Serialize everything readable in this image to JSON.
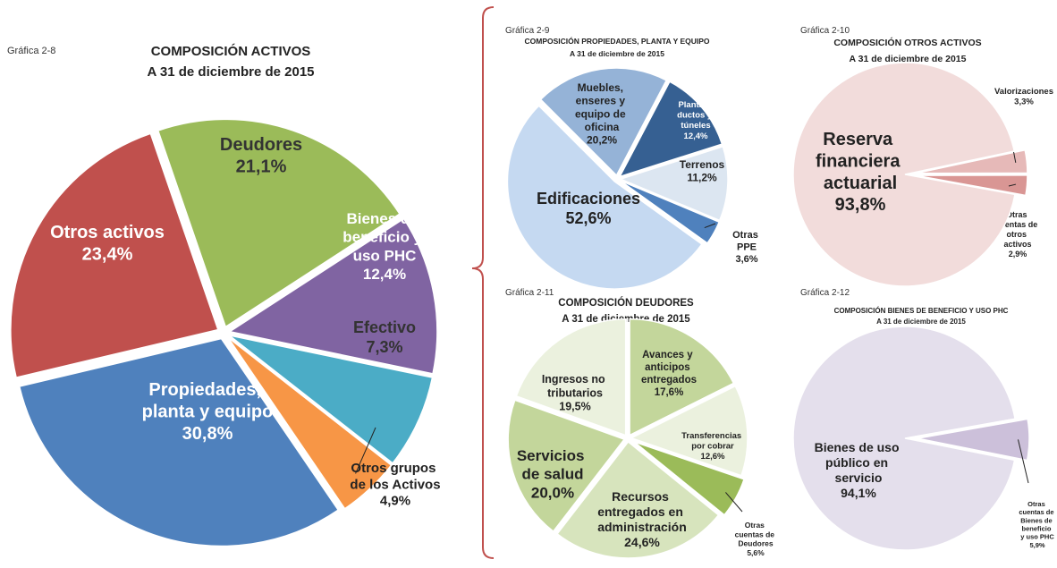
{
  "chart_data": [
    {
      "type": "pie",
      "chart_label": "Gráfica 2-8",
      "title": "COMPOSICIÓN ACTIVOS",
      "subtitle": "A 31 de diciembre de 2015",
      "categories": [
        "Deudores",
        "Bienes de beneficio y uso PHC",
        "Efectivo",
        "Otros grupos de los Activos",
        "Propiedades, planta y equipo",
        "Otros activos"
      ],
      "values": [
        21.1,
        12.4,
        7.3,
        4.9,
        30.8,
        23.4
      ],
      "value_labels": [
        "21,1%",
        "12,4%",
        "7,3%",
        "4,9%",
        "30,8%",
        "23,4%"
      ],
      "colors": [
        "#9bbb59",
        "#8064a2",
        "#4bacc6",
        "#f79646",
        "#4f81bd",
        "#c0504d"
      ]
    },
    {
      "type": "pie",
      "chart_label": "Gráfica 2-9",
      "title": "COMPOSICIÓN PROPIEDADES, PLANTA Y EQUIPO",
      "subtitle": "A 31 de diciembre de 2015",
      "categories": [
        "Muebles, enseres y equipo de oficina",
        "Plantas, ductos y túneles",
        "Terrenos",
        "Otras PPE",
        "Edificaciones"
      ],
      "values": [
        20.2,
        12.4,
        11.2,
        3.6,
        52.6
      ],
      "value_labels": [
        "20,2%",
        "12,4%",
        "11,2%",
        "3,6%",
        "52,6%"
      ],
      "colors": [
        "#95b3d7",
        "#366092",
        "#dce6f1",
        "#4f81bd",
        "#c5d9f1"
      ]
    },
    {
      "type": "pie",
      "chart_label": "Gráfica 2-10",
      "title": "COMPOSICIÓN  OTROS ACTIVOS",
      "subtitle": "A 31 de diciembre de 2015",
      "categories": [
        "Valorizaciones",
        "Otras cuentas de otros activos",
        "Reserva financiera actuarial"
      ],
      "values": [
        3.3,
        2.9,
        93.8
      ],
      "value_labels": [
        "3,3%",
        "2,9%",
        "93,8%"
      ],
      "colors": [
        "#e6b9b8",
        "#d99694",
        "#f2dcdb"
      ]
    },
    {
      "type": "pie",
      "chart_label": "Gráfica 2-11",
      "title": "COMPOSICIÓN  DEUDORES",
      "subtitle": "A 31 de diciembre de 2015",
      "categories": [
        "Avances y anticipos entregados",
        "Transferencias por cobrar",
        "Otras cuentas de Deudores",
        "Recursos entregados en administración",
        "Servicios de salud",
        "Ingresos no tributarios"
      ],
      "values": [
        17.6,
        12.6,
        5.6,
        24.6,
        20.0,
        19.5
      ],
      "value_labels": [
        "17,6%",
        "12,6%",
        "5,6%",
        "24,6%",
        "20,0%",
        "19,5%"
      ],
      "colors": [
        "#c3d69b",
        "#ebf1de",
        "#9bbb59",
        "#d7e4bd",
        "#c3d69b",
        "#ebf1de"
      ]
    },
    {
      "type": "pie",
      "chart_label": "Gráfica 2-12",
      "title": "COMPOSICIÓN BIENES DE BENEFICIO Y USO PHC",
      "subtitle": "A 31 de diciembre de 2015",
      "categories": [
        "Otras cuentas de Bienes de beneficio y uso PHC",
        "Bienes de uso público en servicio"
      ],
      "values": [
        5.9,
        94.1
      ],
      "value_labels": [
        "5,9%",
        "94,1%"
      ],
      "colors": [
        "#ccc0da",
        "#e4dfec"
      ]
    }
  ]
}
